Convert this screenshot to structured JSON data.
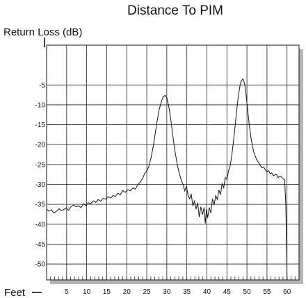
{
  "chart_data": {
    "type": "line",
    "title": "Distance To PIM",
    "ylabel": "Return Loss (dB)",
    "xlabel": "Feet",
    "xlim": [
      0,
      63
    ],
    "ylim": [
      -54,
      5
    ],
    "x_ticks": [
      5,
      10,
      15,
      20,
      25,
      30,
      35,
      40,
      45,
      50,
      55,
      60
    ],
    "y_ticks": [
      -5,
      -10,
      -15,
      -20,
      -25,
      -30,
      -35,
      -40,
      -45,
      -50
    ],
    "grid": true,
    "series": [
      {
        "points": [
          [
            0,
            -36.2
          ],
          [
            0.6,
            -36.7
          ],
          [
            1.2,
            -36.4
          ],
          [
            1.8,
            -37.2
          ],
          [
            2.4,
            -36.8
          ],
          [
            3.1,
            -36.1
          ],
          [
            3.7,
            -36.6
          ],
          [
            4.3,
            -36.3
          ],
          [
            4.9,
            -35.9
          ],
          [
            5.5,
            -36.5
          ],
          [
            6.1,
            -35.6
          ],
          [
            6.7,
            -35.2
          ],
          [
            7.4,
            -35.6
          ],
          [
            8,
            -35.4
          ],
          [
            8.6,
            -35.8
          ],
          [
            9.2,
            -34.9
          ],
          [
            9.8,
            -35.3
          ],
          [
            10.4,
            -34.6
          ],
          [
            11,
            -34.8
          ],
          [
            11.7,
            -34.1
          ],
          [
            12.3,
            -34.5
          ],
          [
            12.9,
            -33.8
          ],
          [
            13.5,
            -34.2
          ],
          [
            14.1,
            -33.5
          ],
          [
            14.7,
            -33.7
          ],
          [
            15.3,
            -33.1
          ],
          [
            16,
            -33.4
          ],
          [
            16.6,
            -32.8
          ],
          [
            17.2,
            -33
          ],
          [
            17.8,
            -32.2
          ],
          [
            18.4,
            -32.6
          ],
          [
            19,
            -31.5
          ],
          [
            19.6,
            -32
          ],
          [
            20.3,
            -31.3
          ],
          [
            20.9,
            -31.6
          ],
          [
            21.5,
            -30.9
          ],
          [
            22.1,
            -31.2
          ],
          [
            22.7,
            -30.2
          ],
          [
            23.3,
            -29.5
          ],
          [
            23.9,
            -28.6
          ],
          [
            24.5,
            -27.2
          ],
          [
            25.1,
            -26.5
          ],
          [
            25.6,
            -25.2
          ],
          [
            26.1,
            -23.1
          ],
          [
            26.6,
            -20.5
          ],
          [
            27.1,
            -17.2
          ],
          [
            27.6,
            -14
          ],
          [
            28.1,
            -11.2
          ],
          [
            28.6,
            -9.3
          ],
          [
            29.1,
            -8
          ],
          [
            29.6,
            -7.6
          ],
          [
            30.1,
            -8.5
          ],
          [
            30.6,
            -11
          ],
          [
            31.1,
            -14.5
          ],
          [
            31.6,
            -18.5
          ],
          [
            32.1,
            -22
          ],
          [
            32.6,
            -25
          ],
          [
            33.1,
            -27.2
          ],
          [
            33.6,
            -28.8
          ],
          [
            34.1,
            -30.2
          ],
          [
            34.5,
            -31.6
          ],
          [
            34.9,
            -30.4
          ],
          [
            35.3,
            -32.8
          ],
          [
            35.7,
            -33.6
          ],
          [
            36.1,
            -32.4
          ],
          [
            36.5,
            -35.4
          ],
          [
            36.9,
            -34.2
          ],
          [
            37.3,
            -36.2
          ],
          [
            37.7,
            -34.6
          ],
          [
            38.1,
            -38.2
          ],
          [
            38.5,
            -35.6
          ],
          [
            38.9,
            -37.6
          ],
          [
            39.3,
            -35.8
          ],
          [
            39.6,
            -39.8
          ],
          [
            39.9,
            -36.2
          ],
          [
            40.2,
            -38.4
          ],
          [
            40.6,
            -35.8
          ],
          [
            41,
            -37.2
          ],
          [
            41.4,
            -33.6
          ],
          [
            41.8,
            -35.2
          ],
          [
            42.2,
            -32.8
          ],
          [
            42.6,
            -33.8
          ],
          [
            43,
            -31.4
          ],
          [
            43.4,
            -32.6
          ],
          [
            43.8,
            -29.8
          ],
          [
            44.2,
            -30.8
          ],
          [
            44.6,
            -28.2
          ],
          [
            45,
            -28.8
          ],
          [
            45.4,
            -26.6
          ],
          [
            45.8,
            -25.4
          ],
          [
            46.2,
            -22.8
          ],
          [
            46.6,
            -19.5
          ],
          [
            47,
            -15.8
          ],
          [
            47.4,
            -11.8
          ],
          [
            47.8,
            -8.2
          ],
          [
            48.2,
            -5.5
          ],
          [
            48.6,
            -3.9
          ],
          [
            49,
            -3.5
          ],
          [
            49.4,
            -4.6
          ],
          [
            49.8,
            -7.5
          ],
          [
            50.2,
            -11.5
          ],
          [
            50.6,
            -15.2
          ],
          [
            51,
            -18.2
          ],
          [
            51.4,
            -20.5
          ],
          [
            51.8,
            -22.2
          ],
          [
            52.2,
            -23.2
          ],
          [
            52.6,
            -24.1
          ],
          [
            53,
            -24.6
          ],
          [
            53.4,
            -25.3
          ],
          [
            53.8,
            -25.8
          ],
          [
            54.2,
            -25.6
          ],
          [
            54.6,
            -26.4
          ],
          [
            55,
            -26.8
          ],
          [
            55.4,
            -26.5
          ],
          [
            55.8,
            -27.3
          ],
          [
            56.2,
            -27.1
          ],
          [
            56.6,
            -27.8
          ],
          [
            57,
            -27.6
          ],
          [
            57.4,
            -27.5
          ],
          [
            57.8,
            -28.3
          ],
          [
            58.2,
            -27.9
          ],
          [
            58.6,
            -28.1
          ],
          [
            59,
            -28.5
          ],
          [
            59.4,
            -28.9
          ],
          [
            59.7,
            -35
          ],
          [
            59.9,
            -46
          ],
          [
            60,
            -54
          ]
        ]
      }
    ]
  }
}
